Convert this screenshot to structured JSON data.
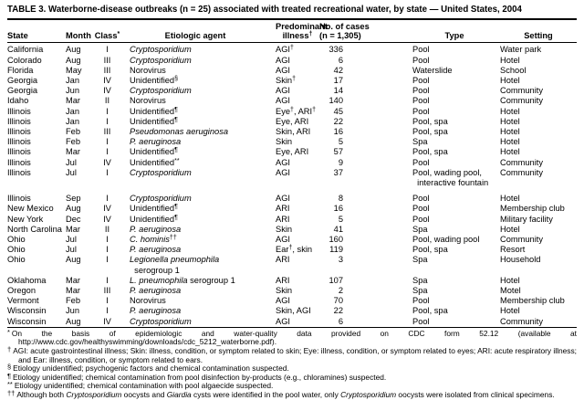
{
  "colors": {
    "text": "#000000",
    "background": "#ffffff",
    "rule": "#000000"
  },
  "title": "TABLE 3. Waterborne-disease outbreaks (n = 25) associated with treated recreational water, by state — United States, 2004",
  "header": {
    "state": "State",
    "month": "Month",
    "class_label": "Class",
    "class_sup": "*",
    "agent": "Etiologic agent",
    "illness_top": "Predominant",
    "illness_bottom": "illness",
    "illness_sup": "†",
    "cases_top": "No. of cases",
    "cases_bottom": "(n = 1,305)",
    "type": "Type",
    "setting": "Setting"
  },
  "rows": [
    {
      "state": "California",
      "month": "Aug",
      "class": "I",
      "agent": [
        {
          "i": "Cryptosporidium"
        }
      ],
      "illness": [
        {
          "t": "AGI"
        },
        {
          "s": "†"
        }
      ],
      "cases": "336",
      "type": "Pool",
      "setting": "Water park"
    },
    {
      "state": "Colorado",
      "month": "Aug",
      "class": "III",
      "agent": [
        {
          "i": "Cryptosporidium"
        }
      ],
      "illness": "AGI",
      "cases": "6",
      "type": "Pool",
      "setting": "Hotel"
    },
    {
      "state": "Florida",
      "month": "May",
      "class": "III",
      "agent": "Norovirus",
      "illness": "AGI",
      "cases": "42",
      "type": "Waterslide",
      "setting": "School"
    },
    {
      "state": "Georgia",
      "month": "Jan",
      "class": "IV",
      "agent": [
        {
          "t": "Unidentified"
        },
        {
          "s": "§"
        }
      ],
      "illness": [
        {
          "t": "Skin"
        },
        {
          "s": "†"
        }
      ],
      "cases": "17",
      "type": "Pool",
      "setting": "Hotel"
    },
    {
      "state": "Georgia",
      "month": "Jun",
      "class": "IV",
      "agent": [
        {
          "i": "Cryptosporidium"
        }
      ],
      "illness": "AGI",
      "cases": "14",
      "type": "Pool",
      "setting": "Community"
    },
    {
      "state": "Idaho",
      "month": "Mar",
      "class": "II",
      "agent": "Norovirus",
      "illness": "AGI",
      "cases": "140",
      "type": "Pool",
      "setting": "Community"
    },
    {
      "state": "Illinois",
      "month": "Jan",
      "class": "I",
      "agent": [
        {
          "t": "Unidentified"
        },
        {
          "s": "¶"
        }
      ],
      "illness": [
        {
          "t": "Eye"
        },
        {
          "s": "†"
        },
        {
          "t": ", ARI"
        },
        {
          "s": "†"
        }
      ],
      "cases": "45",
      "type": "Pool",
      "setting": "Hotel"
    },
    {
      "state": "Illinois",
      "month": "Jan",
      "class": "I",
      "agent": [
        {
          "t": "Unidentified"
        },
        {
          "s": "¶"
        }
      ],
      "illness": "Eye, ARI",
      "cases": "22",
      "type": "Pool, spa",
      "setting": "Hotel"
    },
    {
      "state": "Illinois",
      "month": "Feb",
      "class": "III",
      "agent": [
        {
          "i": "Pseudomonas aeruginosa"
        }
      ],
      "illness": "Skin, ARI",
      "cases": "16",
      "type": "Pool, spa",
      "setting": "Hotel"
    },
    {
      "state": "Illinois",
      "month": "Feb",
      "class": "I",
      "agent": [
        {
          "i": "P. aeruginosa"
        }
      ],
      "illness": "Skin",
      "cases": "5",
      "type": "Spa",
      "setting": "Hotel"
    },
    {
      "state": "Illinois",
      "month": "Mar",
      "class": "I",
      "agent": [
        {
          "t": "Unidentified"
        },
        {
          "s": "¶"
        }
      ],
      "illness": "Eye, ARI",
      "cases": "57",
      "type": "Pool, spa",
      "setting": "Hotel"
    },
    {
      "state": "Illinois",
      "month": "Jul",
      "class": "IV",
      "agent": [
        {
          "t": "Unidentified"
        },
        {
          "s": "**"
        }
      ],
      "illness": "AGI",
      "cases": "9",
      "type": "Pool",
      "setting": "Community"
    },
    {
      "state": "Illinois",
      "month": "Jul",
      "class": "I",
      "agent": [
        {
          "i": "Cryptosporidium"
        }
      ],
      "illness": "AGI",
      "cases": "37",
      "type": [
        {
          "t": "Pool, wading pool,"
        },
        {
          "b": true
        },
        {
          "t": "  interactive fountain"
        }
      ],
      "setting": "Community",
      "spacer_after": true
    },
    {
      "state": "Illinois",
      "month": "Sep",
      "class": "I",
      "agent": [
        {
          "i": "Cryptosporidium"
        }
      ],
      "illness": "AGI",
      "cases": "8",
      "type": "Pool",
      "setting": "Hotel"
    },
    {
      "state": "New Mexico",
      "month": "Aug",
      "class": "IV",
      "agent": [
        {
          "t": "Unidentified"
        },
        {
          "s": "¶"
        }
      ],
      "illness": "ARI",
      "cases": "16",
      "type": "Pool",
      "setting": "Membership club"
    },
    {
      "state": "New York",
      "month": "Dec",
      "class": "IV",
      "agent": [
        {
          "t": "Unidentified"
        },
        {
          "s": "¶"
        }
      ],
      "illness": "ARI",
      "cases": "5",
      "type": "Pool",
      "setting": "Military facility"
    },
    {
      "state": "North Carolina",
      "month": "Mar",
      "class": "II",
      "agent": [
        {
          "i": "P. aeruginosa"
        }
      ],
      "illness": "Skin",
      "cases": "41",
      "type": "Spa",
      "setting": "Hotel"
    },
    {
      "state": "Ohio",
      "month": "Jul",
      "class": "I",
      "agent": [
        {
          "i": "C. hominis"
        },
        {
          "s": "††"
        }
      ],
      "illness": "AGI",
      "cases": "160",
      "type": "Pool, wading pool",
      "setting": "Community"
    },
    {
      "state": "Ohio",
      "month": "Jul",
      "class": "I",
      "agent": [
        {
          "i": "P. aeruginosa"
        }
      ],
      "illness": [
        {
          "t": "Ear"
        },
        {
          "s": "†"
        },
        {
          "t": ", skin"
        }
      ],
      "cases": "119",
      "type": "Pool, spa",
      "setting": "Resort"
    },
    {
      "state": "Ohio",
      "month": "Aug",
      "class": "I",
      "agent": [
        {
          "i": "Legionella pneumophila"
        },
        {
          "b": true
        },
        {
          "t": "  serogroup 1"
        }
      ],
      "illness": "ARI",
      "cases": "3",
      "type": "Spa",
      "setting": "Household"
    },
    {
      "state": "Oklahoma",
      "month": "Mar",
      "class": "I",
      "agent": [
        {
          "i": "L. pneumophila"
        },
        {
          "t": " serogroup 1"
        }
      ],
      "illness": "ARI",
      "cases": "107",
      "type": "Spa",
      "setting": "Hotel"
    },
    {
      "state": "Oregon",
      "month": "Mar",
      "class": "III",
      "agent": [
        {
          "i": "P. aeruginosa"
        }
      ],
      "illness": "Skin",
      "cases": "2",
      "type": "Spa",
      "setting": "Motel"
    },
    {
      "state": "Vermont",
      "month": "Feb",
      "class": "I",
      "agent": "Norovirus",
      "illness": "AGI",
      "cases": "70",
      "type": "Pool",
      "setting": "Membership club"
    },
    {
      "state": "Wisconsin",
      "month": "Jun",
      "class": "I",
      "agent": [
        {
          "i": "P. aeruginosa"
        }
      ],
      "illness": "Skin, AGI",
      "cases": "22",
      "type": "Pool, spa",
      "setting": "Hotel"
    },
    {
      "state": "Wisconsin",
      "month": "Aug",
      "class": "IV",
      "agent": [
        {
          "i": "Cryptosporidium"
        }
      ],
      "illness": "AGI",
      "cases": "6",
      "type": "Pool",
      "setting": "Community"
    }
  ],
  "footnotes": [
    {
      "marker": "*",
      "segments": [
        {
          "t": "On the basis of epidemiologic and water-quality data provided on CDC form 52.12 (available at http://www.cdc.gov/healthyswimming/downloads/cdc_5212_waterborne.pdf)."
        }
      ]
    },
    {
      "marker": "†",
      "segments": [
        {
          "t": "AGI: acute gastrointestinal illness; Skin: illness, condition, or symptom related to skin; Eye: illness, condition, or symptom related to eyes; ARI: acute respiratory illness; and Ear: illness, condition, or symptom related to ears."
        }
      ]
    },
    {
      "marker": "§",
      "segments": [
        {
          "t": "Etiology unidentified; psychogenic factors and chemical contamination suspected."
        }
      ]
    },
    {
      "marker": "¶",
      "segments": [
        {
          "t": "Etiology unidentified; chemical contamination from pool disinfection by-products (e.g., chloramines) suspected."
        }
      ]
    },
    {
      "marker": "**",
      "segments": [
        {
          "t": "Etiology unidentified; chemical contamination with pool algaecide suspected."
        }
      ]
    },
    {
      "marker": "††",
      "segments": [
        {
          "t": "Although both "
        },
        {
          "i": "Cryptosporidium"
        },
        {
          "t": " oocysts and "
        },
        {
          "i": "Giardia"
        },
        {
          "t": " cysts were identified in the pool water, only "
        },
        {
          "i": "Cryptosporidium"
        },
        {
          "t": " oocysts were isolated from clinical specimens."
        }
      ]
    }
  ]
}
